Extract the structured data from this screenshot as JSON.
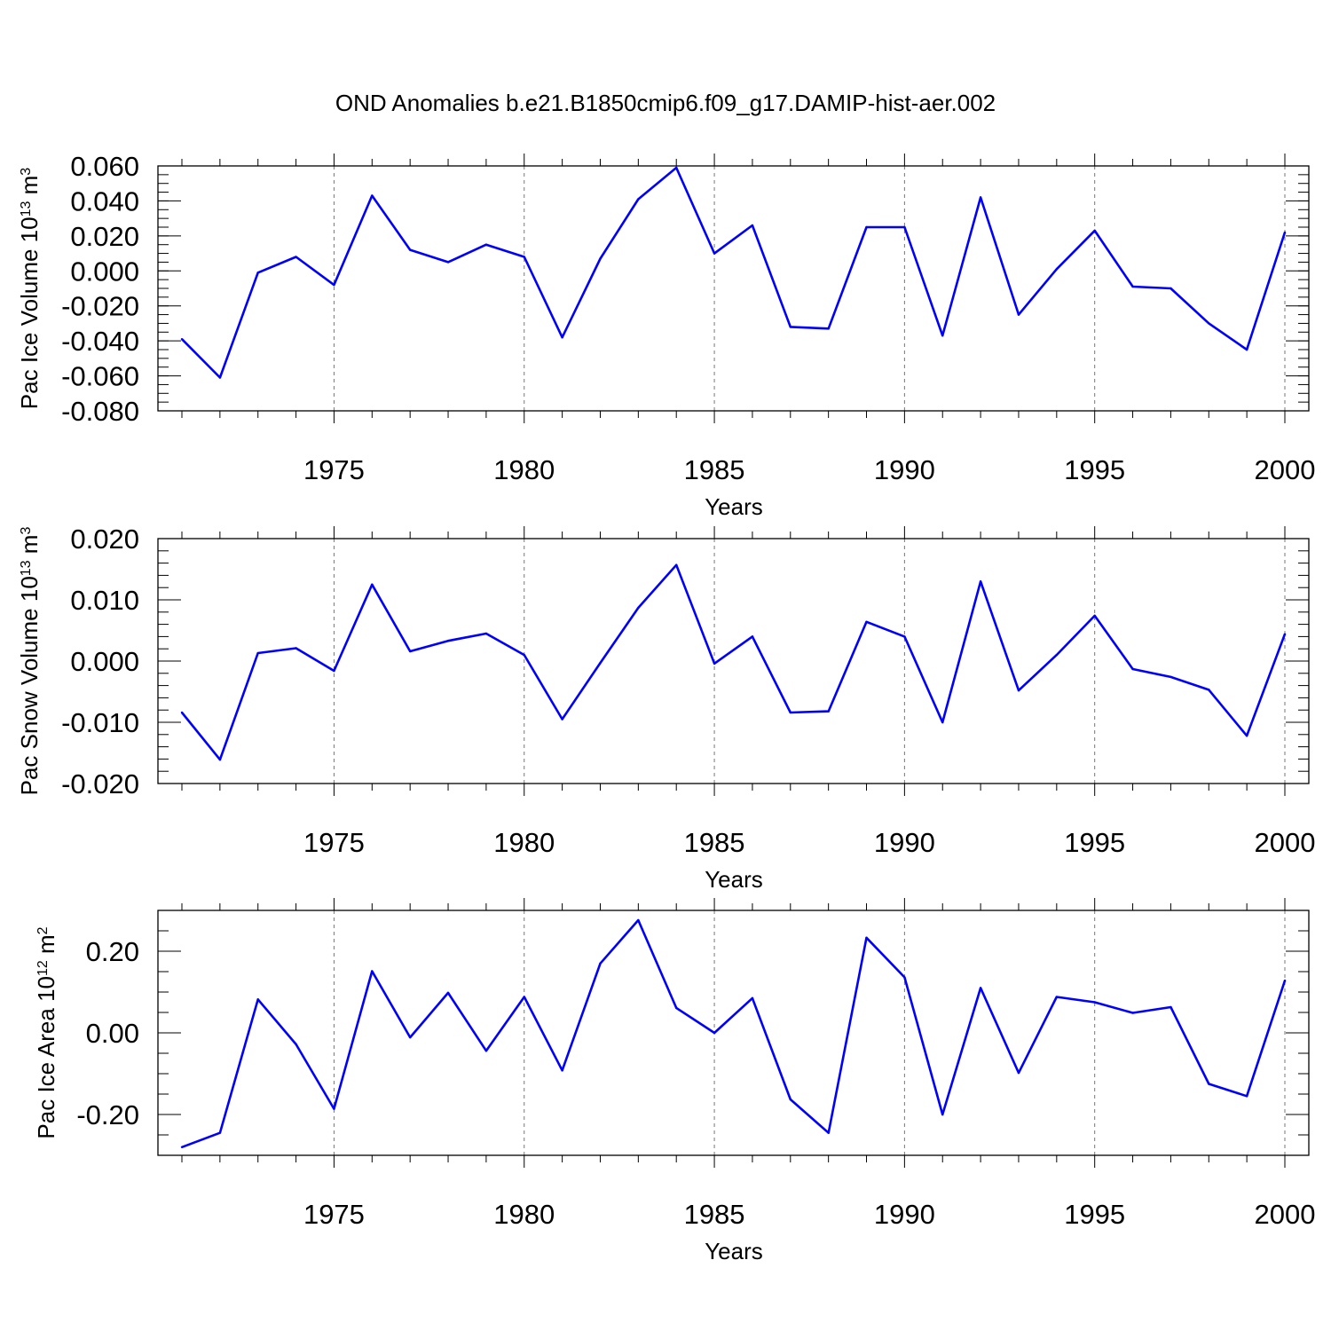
{
  "title": "OND Anomalies b.e21.B1850cmip6.f09_g17.DAMIP-hist-aer.002",
  "chart_data": [
    {
      "type": "line",
      "title": "OND Anomalies b.e21.B1850cmip6.f09_g17.DAMIP-hist-aer.002",
      "xlabel": "Years",
      "ylabel_main": "Pac Ice Volume 10",
      "ylabel_exp": "13",
      "ylabel_unit": " m",
      "ylabel_unit_exp": "3",
      "xlim": [
        1971,
        2000
      ],
      "ylim": [
        -0.08,
        0.06
      ],
      "x_ticks": [
        1975,
        1980,
        1985,
        1990,
        1995,
        2000
      ],
      "x_tick_labels": [
        "1975",
        "1980",
        "1985",
        "1990",
        "1995",
        "2000"
      ],
      "y_ticks": [
        -0.08,
        -0.06,
        -0.04,
        -0.02,
        0.0,
        0.02,
        0.04,
        0.06
      ],
      "y_tick_labels": [
        "-0.080",
        "-0.060",
        "-0.040",
        "-0.020",
        "0.000",
        "0.020",
        "0.040",
        "0.060"
      ],
      "y_minor_step": 0.005,
      "grid": "vertical dashed at major x ticks",
      "color": "#0000ff",
      "x": [
        1971,
        1972,
        1973,
        1974,
        1975,
        1976,
        1977,
        1978,
        1979,
        1980,
        1981,
        1982,
        1983,
        1984,
        1985,
        1986,
        1987,
        1988,
        1989,
        1990,
        1991,
        1992,
        1993,
        1994,
        1995,
        1996,
        1997,
        1998,
        1999,
        2000
      ],
      "values": [
        -0.039,
        -0.061,
        -0.001,
        0.008,
        -0.008,
        0.043,
        0.012,
        0.005,
        0.015,
        0.008,
        -0.038,
        0.007,
        0.041,
        0.059,
        0.01,
        0.026,
        -0.032,
        -0.033,
        0.025,
        0.025,
        -0.037,
        0.042,
        -0.025,
        0.001,
        0.023,
        -0.009,
        -0.01,
        -0.03,
        -0.045,
        0.022
      ]
    },
    {
      "type": "line",
      "xlabel": "Years",
      "ylabel_main": "Pac Snow Volume 10",
      "ylabel_exp": "13",
      "ylabel_unit": " m",
      "ylabel_unit_exp": "3",
      "xlim": [
        1971,
        2000
      ],
      "ylim": [
        -0.02,
        0.02
      ],
      "x_ticks": [
        1975,
        1980,
        1985,
        1990,
        1995,
        2000
      ],
      "x_tick_labels": [
        "1975",
        "1980",
        "1985",
        "1990",
        "1995",
        "2000"
      ],
      "y_ticks": [
        -0.02,
        -0.01,
        0.0,
        0.01,
        0.02
      ],
      "y_tick_labels": [
        "-0.020",
        "-0.010",
        "0.000",
        "0.010",
        "0.020"
      ],
      "y_minor_step": 0.002,
      "grid": "vertical dashed at major x ticks",
      "color": "#0000ff",
      "x": [
        1971,
        1972,
        1973,
        1974,
        1975,
        1976,
        1977,
        1978,
        1979,
        1980,
        1981,
        1982,
        1983,
        1984,
        1985,
        1986,
        1987,
        1988,
        1989,
        1990,
        1991,
        1992,
        1993,
        1994,
        1995,
        1996,
        1997,
        1998,
        1999,
        2000
      ],
      "values": [
        -0.0084,
        -0.0161,
        0.0013,
        0.0021,
        -0.0016,
        0.0125,
        0.0016,
        0.0033,
        0.0045,
        0.001,
        -0.0095,
        -0.0003,
        0.0087,
        0.0157,
        -0.0004,
        0.004,
        -0.0084,
        -0.0082,
        0.0064,
        0.004,
        -0.01,
        0.013,
        -0.0048,
        0.001,
        0.0074,
        -0.0013,
        -0.0026,
        -0.0047,
        -0.0122,
        0.0044
      ]
    },
    {
      "type": "line",
      "xlabel": "Years",
      "ylabel_main": "Pac Ice Area 10",
      "ylabel_exp": "12",
      "ylabel_unit": " m",
      "ylabel_unit_exp": "2",
      "xlim": [
        1971,
        2000
      ],
      "ylim": [
        -0.3,
        0.3
      ],
      "x_ticks": [
        1975,
        1980,
        1985,
        1990,
        1995,
        2000
      ],
      "x_tick_labels": [
        "1975",
        "1980",
        "1985",
        "1990",
        "1995",
        "2000"
      ],
      "y_ticks": [
        -0.2,
        0.0,
        0.2
      ],
      "y_tick_labels": [
        "-0.20",
        "0.00",
        "0.20"
      ],
      "y_minor_step": 0.05,
      "grid": "vertical dashed at major x ticks",
      "color": "#0000ff",
      "x": [
        1971,
        1972,
        1973,
        1974,
        1975,
        1976,
        1977,
        1978,
        1979,
        1980,
        1981,
        1982,
        1983,
        1984,
        1985,
        1986,
        1987,
        1988,
        1989,
        1990,
        1991,
        1992,
        1993,
        1994,
        1995,
        1996,
        1997,
        1998,
        1999,
        2000
      ],
      "values": [
        -0.28,
        -0.245,
        0.082,
        -0.028,
        -0.186,
        0.151,
        -0.011,
        0.098,
        -0.044,
        0.088,
        -0.092,
        0.17,
        0.276,
        0.061,
        0.0,
        0.085,
        -0.163,
        -0.245,
        0.233,
        0.136,
        -0.2,
        0.11,
        -0.098,
        0.088,
        0.075,
        0.049,
        0.063,
        -0.125,
        -0.155,
        0.128
      ]
    }
  ]
}
